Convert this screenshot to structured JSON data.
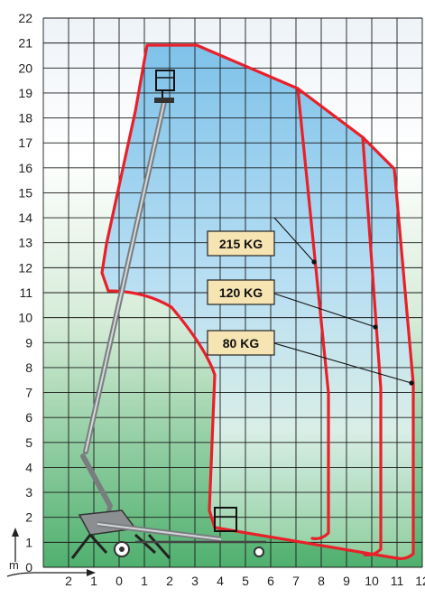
{
  "diagram": {
    "y_ticks": [
      "0",
      "1",
      "2",
      "3",
      "4",
      "5",
      "6",
      "7",
      "8",
      "9",
      "10",
      "11",
      "12",
      "13",
      "14",
      "15",
      "16",
      "17",
      "18",
      "19",
      "20",
      "21",
      "22"
    ],
    "x_ticks": [
      "2",
      "1",
      "0",
      "1",
      "2",
      "3",
      "4",
      "5",
      "6",
      "7",
      "8",
      "9",
      "10",
      "11",
      "12"
    ],
    "axis_unit": "m",
    "load_labels": [
      "215 KG",
      "120 KG",
      "80 KG"
    ],
    "colors": {
      "envelope_stroke": "#e8202a",
      "grid": "#1a1a1a",
      "label_fill": "#f6e4b2",
      "sky_blue": "#9fd2ee",
      "ground_green": "#5bb879"
    }
  }
}
